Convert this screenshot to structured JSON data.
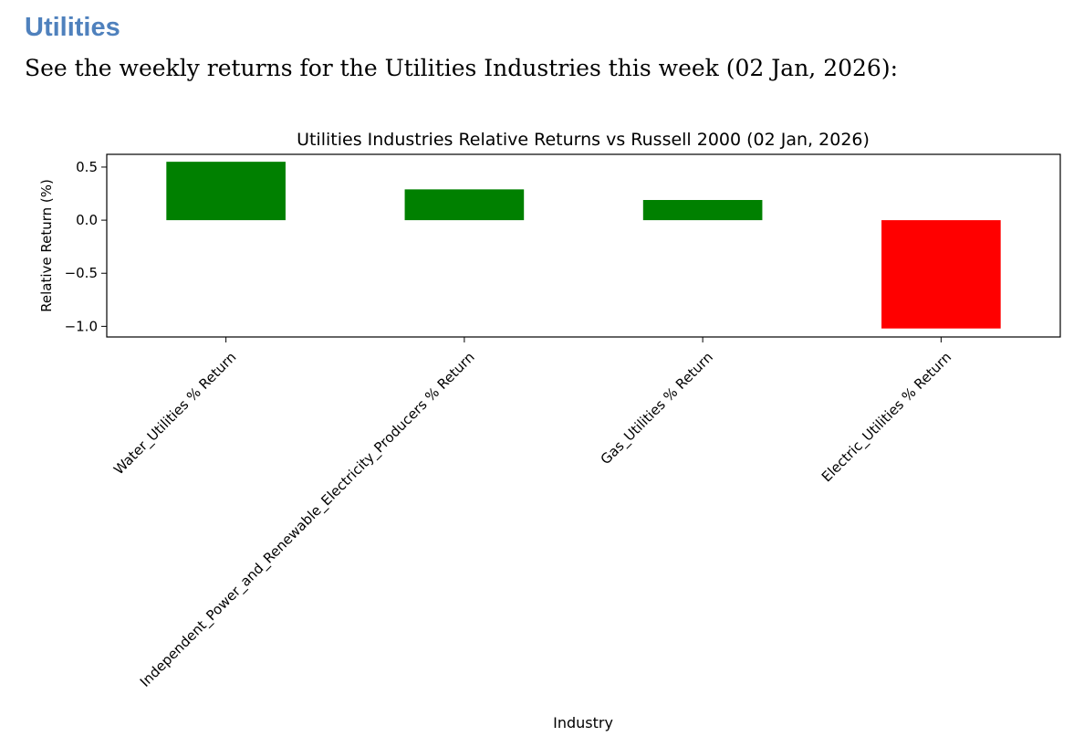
{
  "page": {
    "heading": "Utilities",
    "intro": "See the weekly returns for the Utilities Industries this week (02 Jan, 2026):"
  },
  "chart_data": {
    "type": "bar",
    "title": "Utilities Industries Relative Returns vs Russell 2000 (02 Jan, 2026)",
    "xlabel": "Industry",
    "ylabel": "Relative Return (%)",
    "categories": [
      "Water_Utilities % Return",
      "Independent_Power_and_Renewable_Electricity_Producers % Return",
      "Gas_Utilities % Return",
      "Electric_Utilities % Return"
    ],
    "values": [
      0.55,
      0.29,
      0.19,
      -1.02
    ],
    "colors": [
      "#008000",
      "#008000",
      "#008000",
      "#ff0000"
    ],
    "ylim": [
      -1.1,
      0.62
    ],
    "yticks": [
      0.5,
      0.0,
      -0.5,
      -1.0
    ],
    "ytick_labels": [
      "0.5",
      "0.0",
      "−0.5",
      "−1.0"
    ],
    "grid": false,
    "legend": false
  }
}
